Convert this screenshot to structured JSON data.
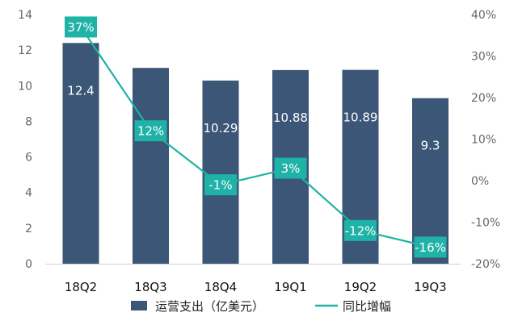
{
  "chart_data": {
    "type": "bar",
    "categories": [
      "18Q2",
      "18Q3",
      "18Q4",
      "19Q1",
      "19Q2",
      "19Q3"
    ],
    "series": [
      {
        "name": "运营支出（亿美元）",
        "type": "bar",
        "axis": "left",
        "values": [
          12.4,
          11.0,
          10.29,
          10.88,
          10.89,
          9.3
        ],
        "labels": [
          "12.4",
          "",
          "10.29",
          "10.88",
          "10.89",
          "9.3"
        ]
      },
      {
        "name": "同比增幅",
        "type": "line",
        "axis": "right",
        "values": [
          37,
          12,
          -1,
          3,
          -12,
          -16
        ],
        "labels": [
          "37%",
          "12%",
          "-1%",
          "3%",
          "-12%",
          "-16%"
        ]
      }
    ],
    "y_left": {
      "min": 0,
      "max": 14,
      "ticks": [
        "0",
        "2",
        "4",
        "6",
        "8",
        "10",
        "12",
        "14"
      ]
    },
    "y_right": {
      "min": -20,
      "max": 40,
      "ticks": [
        "-20%",
        "-10%",
        "0%",
        "10%",
        "20%",
        "30%",
        "40%"
      ]
    },
    "legend_position": "bottom",
    "grid": false,
    "colors": {
      "bar": "#3b5677",
      "line": "#1fb2a6",
      "label_box": "#1fb2a6"
    }
  }
}
